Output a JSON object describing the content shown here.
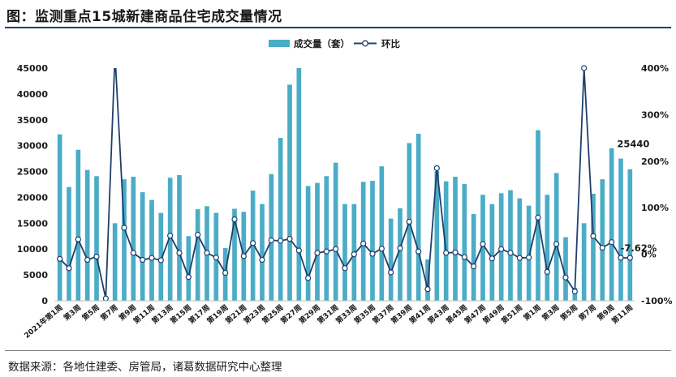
{
  "title": "图：监测重点15城新建商品住宅成交量情况",
  "source": "数据来源：各地住建委、房管局，诸葛数据研究中心整理",
  "colors": {
    "bar": "#4bacc6",
    "line": "#1f3f6b",
    "marker_fill": "#ffffff",
    "title_rule": "#1f3f6b"
  },
  "chart_data": {
    "type": "bar",
    "title": "图：监测重点15城新建商品住宅成交量情况",
    "legend": [
      "成交量（套）",
      "环比"
    ],
    "legend_position": "top-center",
    "grid": false,
    "y_left": {
      "min": 0,
      "max": 45000,
      "ticks": [
        0,
        5000,
        10000,
        15000,
        20000,
        25000,
        30000,
        35000,
        40000,
        45000
      ]
    },
    "y_right": {
      "min": -100,
      "max": 400,
      "unit": "%",
      "ticks": [
        -100,
        0,
        100,
        200,
        300,
        400
      ]
    },
    "x_tick_labels": [
      "2021年第1周",
      "第3周",
      "第5周",
      "第7周",
      "第9周",
      "第11周",
      "第13周",
      "第15周",
      "第17周",
      "第19周",
      "第21周",
      "第23周",
      "第25周",
      "第27周",
      "第29周",
      "第31周",
      "第33周",
      "第35周",
      "第37周",
      "第39周",
      "第41周",
      "第43周",
      "第45周",
      "第47周",
      "第49周",
      "第51周",
      "第1周",
      "第3周",
      "第5周",
      "第7周",
      "第9周",
      "第11周"
    ],
    "x_tick_every": 2,
    "series": [
      {
        "name": "成交量（套）",
        "kind": "bar",
        "axis": "left",
        "values": [
          32200,
          22000,
          29200,
          25300,
          24100,
          600,
          15000,
          23500,
          24000,
          21000,
          19500,
          17000,
          23800,
          24300,
          12500,
          17700,
          18300,
          17000,
          10200,
          17800,
          17200,
          21300,
          18700,
          24500,
          31500,
          41800,
          45000,
          22200,
          22800,
          24100,
          26700,
          18700,
          18700,
          23000,
          23200,
          26000,
          15900,
          17900,
          30500,
          32300,
          8000,
          25100,
          23100,
          24000,
          22600,
          16800,
          20500,
          18700,
          20800,
          21400,
          19800,
          18400,
          33000,
          20500,
          24700,
          12300,
          2500,
          15000,
          20700,
          23500,
          29500,
          27500,
          25440
        ]
      },
      {
        "name": "环比",
        "kind": "line",
        "axis": "right",
        "values": [
          -10,
          -30,
          32,
          -12,
          -5,
          -95,
          430,
          57,
          3,
          -12,
          -8,
          -13,
          40,
          3,
          -49,
          42,
          3,
          -7,
          -40,
          75,
          -4,
          24,
          -12,
          30,
          29,
          33,
          8,
          -51,
          3,
          6,
          11,
          -30,
          0,
          23,
          1,
          12,
          -39,
          13,
          70,
          6,
          -75,
          185,
          3,
          4,
          -6,
          -26,
          22,
          -9,
          11,
          3,
          -8,
          -7,
          79,
          -38,
          22,
          -50,
          -80,
          400,
          39,
          14,
          26,
          -7.62,
          -7.62
        ]
      }
    ],
    "data_labels": [
      {
        "series": "成交量（套）",
        "index": 62,
        "text": "25440"
      },
      {
        "series": "环比",
        "index": 61,
        "text": "-7.62%"
      }
    ]
  }
}
